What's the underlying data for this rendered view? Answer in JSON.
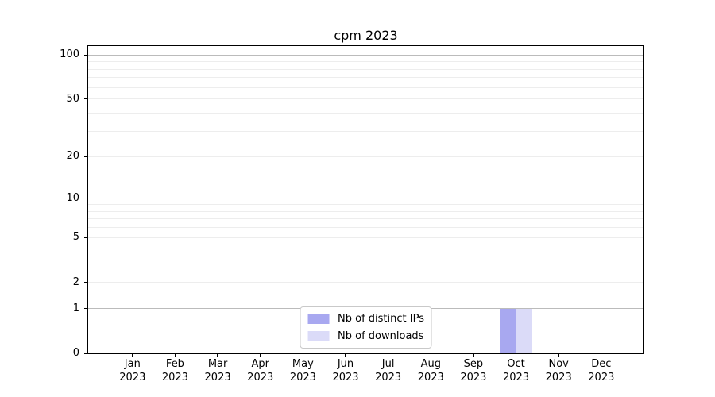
{
  "chart_data": {
    "type": "bar",
    "title": "cpm 2023",
    "x_categories": [
      "Jan 2023",
      "Feb 2023",
      "Mar 2023",
      "Apr 2023",
      "May 2023",
      "Jun 2023",
      "Jul 2023",
      "Aug 2023",
      "Sep 2023",
      "Oct 2023",
      "Nov 2023",
      "Dec 2023"
    ],
    "months": [
      "Jan",
      "Feb",
      "Mar",
      "Apr",
      "May",
      "Jun",
      "Jul",
      "Aug",
      "Sep",
      "Oct",
      "Nov",
      "Dec"
    ],
    "year": "2023",
    "series": [
      {
        "name": "Nb of distinct IPs",
        "color": "#a8a8f0",
        "values": [
          0,
          0,
          0,
          0,
          0,
          0,
          0,
          0,
          0,
          1,
          0,
          0
        ]
      },
      {
        "name": "Nb of downloads",
        "color": "#dbdbf8",
        "values": [
          0,
          0,
          0,
          0,
          0,
          0,
          0,
          0,
          0,
          1,
          0,
          0
        ]
      }
    ],
    "xlabel": "",
    "ylabel": "",
    "y_scale": "log10(value+1)",
    "ylim": [
      0,
      112
    ],
    "y_ticks": [
      0,
      1,
      2,
      5,
      10,
      20,
      50,
      100
    ],
    "y_gridlines_major": [
      1,
      10,
      100
    ],
    "y_gridlines_minor": [
      2,
      3,
      4,
      5,
      6,
      7,
      8,
      9,
      20,
      30,
      40,
      50,
      60,
      70,
      80,
      90
    ],
    "grid_color_major": "#bbbbbb",
    "grid_color_minor": "#ededed",
    "legend_position": "lower center",
    "axis_color": "#000000",
    "background_color": "#ffffff"
  },
  "legend": {
    "items": [
      "Nb of distinct IPs",
      "Nb of downloads"
    ]
  }
}
